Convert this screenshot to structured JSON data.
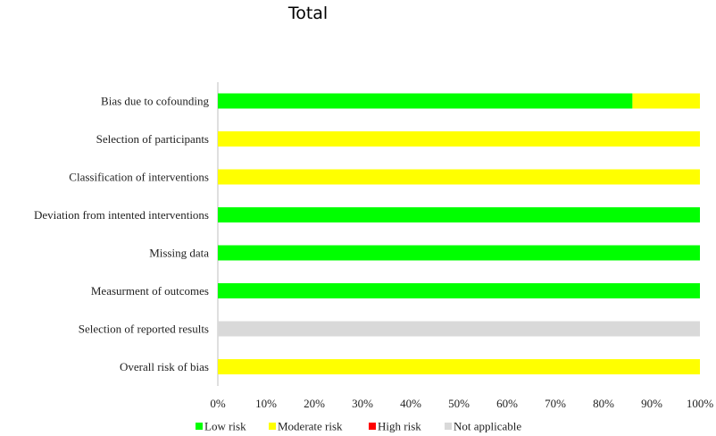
{
  "chart_data": {
    "type": "bar",
    "orientation": "horizontal",
    "stacked": true,
    "title": "Total",
    "categories": [
      "Bias due to cofounding",
      "Selection of participants",
      "Classification of interventions",
      "Deviation from intented interventions",
      "Missing data",
      "Measurment of outcomes",
      "Selection of reported results",
      "Overall risk of bias"
    ],
    "series": [
      {
        "name": "Low risk",
        "color": "#00ff00",
        "values": [
          86,
          0,
          0,
          100,
          100,
          100,
          0,
          0
        ]
      },
      {
        "name": "Moderate risk",
        "color": "#ffff00",
        "values": [
          14,
          100,
          100,
          0,
          0,
          0,
          0,
          100
        ]
      },
      {
        "name": "High risk",
        "color": "#ff0000",
        "values": [
          0,
          0,
          0,
          0,
          0,
          0,
          0,
          0
        ]
      },
      {
        "name": "Not applicable",
        "color": "#d9d9d9",
        "values": [
          0,
          0,
          0,
          0,
          0,
          0,
          100,
          0
        ]
      }
    ],
    "xlim": [
      0,
      100
    ],
    "xticks": [
      "0%",
      "10%",
      "20%",
      "30%",
      "40%",
      "50%",
      "60%",
      "70%",
      "80%",
      "90%",
      "100%"
    ],
    "xlabel": "",
    "ylabel": "",
    "grid": false,
    "legend_position": "bottom"
  }
}
